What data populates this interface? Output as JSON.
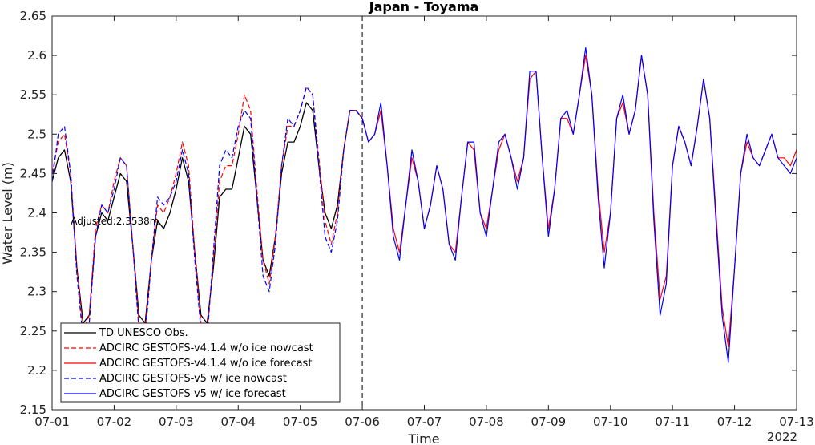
{
  "chart_data": {
    "type": "line",
    "title": "Japan - Toyama",
    "xlabel": "Time",
    "ylabel": "Water Level (m)",
    "year_label": "2022",
    "xlim": [
      0,
      12
    ],
    "ylim": [
      2.15,
      2.65
    ],
    "x_ticks": [
      0,
      1,
      2,
      3,
      4,
      5,
      6,
      7,
      8,
      9,
      10,
      11,
      12
    ],
    "x_tick_labels": [
      "07-01",
      "07-02",
      "07-03",
      "07-04",
      "07-05",
      "07-06",
      "07-07",
      "07-08",
      "07-09",
      "07-10",
      "07-11",
      "07-12",
      "07-13"
    ],
    "y_ticks": [
      2.15,
      2.2,
      2.25,
      2.3,
      2.35,
      2.4,
      2.45,
      2.5,
      2.55,
      2.6,
      2.65
    ],
    "y_tick_labels": [
      "2.15",
      "2.2",
      "2.25",
      "2.3",
      "2.35",
      "2.4",
      "2.45",
      "2.5",
      "2.55",
      "2.6",
      "2.65"
    ],
    "grid": false,
    "legend_position": "bottom-left",
    "nowcast_forecast_divider_x": 5,
    "annotation": {
      "text": "Adjusted:2.3538m",
      "x": 0.3,
      "y": 2.385
    },
    "series": [
      {
        "name": "TD UNESCO Obs.",
        "color": "#000000",
        "dash": "solid",
        "x": [
          0.0,
          0.1,
          0.2,
          0.3,
          0.4,
          0.5,
          0.6,
          0.7,
          0.8,
          0.9,
          1.0,
          1.1,
          1.2,
          1.3,
          1.4,
          1.5,
          1.6,
          1.7,
          1.8,
          1.9,
          2.0,
          2.1,
          2.2,
          2.3,
          2.4,
          2.5,
          2.6,
          2.7,
          2.8,
          2.9,
          3.0,
          3.1,
          3.2,
          3.3,
          3.4,
          3.5,
          3.6,
          3.7,
          3.8,
          3.9,
          4.0,
          4.1,
          4.2,
          4.3,
          4.4,
          4.5,
          4.6,
          4.7,
          4.8,
          4.9,
          5.0
        ],
        "y": [
          2.44,
          2.47,
          2.48,
          2.44,
          2.33,
          2.26,
          2.27,
          2.37,
          2.4,
          2.39,
          2.42,
          2.45,
          2.44,
          2.36,
          2.27,
          2.26,
          2.34,
          2.39,
          2.38,
          2.4,
          2.43,
          2.47,
          2.44,
          2.35,
          2.27,
          2.26,
          2.33,
          2.42,
          2.43,
          2.43,
          2.47,
          2.51,
          2.5,
          2.42,
          2.34,
          2.32,
          2.37,
          2.45,
          2.49,
          2.49,
          2.51,
          2.54,
          2.53,
          2.46,
          2.4,
          2.38,
          2.41,
          2.48,
          2.53,
          2.53,
          2.52
        ]
      },
      {
        "name": "ADCIRC GESTOFS-v4.1.4 w/o ice nowcast",
        "color": "#ff0000",
        "dash": "dashed",
        "x": [
          0.0,
          0.1,
          0.2,
          0.3,
          0.4,
          0.5,
          0.6,
          0.7,
          0.8,
          0.9,
          1.0,
          1.1,
          1.2,
          1.3,
          1.4,
          1.5,
          1.6,
          1.7,
          1.8,
          1.9,
          2.0,
          2.1,
          2.2,
          2.3,
          2.4,
          2.5,
          2.6,
          2.7,
          2.8,
          2.9,
          3.0,
          3.1,
          3.2,
          3.3,
          3.4,
          3.5,
          3.6,
          3.7,
          3.8,
          3.9,
          4.0,
          4.1,
          4.2,
          4.3,
          4.4,
          4.5,
          4.6,
          4.7,
          4.8,
          4.9,
          5.0
        ],
        "y": [
          2.45,
          2.49,
          2.5,
          2.45,
          2.33,
          2.25,
          2.27,
          2.38,
          2.41,
          2.4,
          2.44,
          2.47,
          2.46,
          2.36,
          2.26,
          2.25,
          2.34,
          2.41,
          2.4,
          2.42,
          2.45,
          2.49,
          2.46,
          2.35,
          2.26,
          2.25,
          2.34,
          2.44,
          2.46,
          2.46,
          2.5,
          2.55,
          2.53,
          2.43,
          2.34,
          2.31,
          2.37,
          2.46,
          2.51,
          2.51,
          2.53,
          2.56,
          2.55,
          2.47,
          2.39,
          2.36,
          2.4,
          2.48,
          2.53,
          2.53,
          2.52
        ]
      },
      {
        "name": "ADCIRC GESTOFS-v4.1.4 w/o ice forecast",
        "color": "#ff0000",
        "dash": "solid",
        "x": [
          5.0,
          5.1,
          5.2,
          5.3,
          5.4,
          5.5,
          5.6,
          5.7,
          5.8,
          5.9,
          6.0,
          6.1,
          6.2,
          6.3,
          6.4,
          6.5,
          6.6,
          6.7,
          6.8,
          6.9,
          7.0,
          7.1,
          7.2,
          7.3,
          7.4,
          7.5,
          7.6,
          7.7,
          7.8,
          7.9,
          8.0,
          8.1,
          8.2,
          8.3,
          8.4,
          8.5,
          8.6,
          8.7,
          8.8,
          8.9,
          9.0,
          9.1,
          9.2,
          9.3,
          9.4,
          9.5,
          9.6,
          9.7,
          9.8,
          9.9,
          10.0,
          10.1,
          10.2,
          10.3,
          10.4,
          10.5,
          10.6,
          10.7,
          10.8,
          10.9,
          11.0,
          11.1,
          11.2,
          11.3,
          11.4,
          11.5,
          11.6,
          11.7,
          11.8,
          11.9,
          12.0
        ],
        "y": [
          2.52,
          2.49,
          2.5,
          2.53,
          2.46,
          2.38,
          2.35,
          2.41,
          2.47,
          2.44,
          2.38,
          2.41,
          2.46,
          2.43,
          2.36,
          2.35,
          2.42,
          2.49,
          2.48,
          2.4,
          2.38,
          2.43,
          2.48,
          2.5,
          2.47,
          2.44,
          2.47,
          2.57,
          2.58,
          2.47,
          2.38,
          2.43,
          2.52,
          2.52,
          2.5,
          2.55,
          2.6,
          2.55,
          2.43,
          2.35,
          2.4,
          2.52,
          2.54,
          2.5,
          2.53,
          2.6,
          2.55,
          2.4,
          2.29,
          2.32,
          2.46,
          2.51,
          2.49,
          2.46,
          2.51,
          2.57,
          2.52,
          2.4,
          2.28,
          2.23,
          2.33,
          2.45,
          2.49,
          2.47,
          2.46,
          2.48,
          2.5,
          2.47,
          2.47,
          2.46,
          2.48
        ]
      },
      {
        "name": "ADCIRC GESTOFS-v5 w/ ice nowcast",
        "color": "#0000ff",
        "dash": "dashed",
        "x": [
          0.0,
          0.1,
          0.2,
          0.3,
          0.4,
          0.5,
          0.6,
          0.7,
          0.8,
          0.9,
          1.0,
          1.1,
          1.2,
          1.3,
          1.4,
          1.5,
          1.6,
          1.7,
          1.8,
          1.9,
          2.0,
          2.1,
          2.2,
          2.3,
          2.4,
          2.5,
          2.6,
          2.7,
          2.8,
          2.9,
          3.0,
          3.1,
          3.2,
          3.3,
          3.4,
          3.5,
          3.6,
          3.7,
          3.8,
          3.9,
          4.0,
          4.1,
          4.2,
          4.3,
          4.4,
          4.5,
          4.6,
          4.7,
          4.8,
          4.9,
          5.0
        ],
        "y": [
          2.44,
          2.5,
          2.51,
          2.45,
          2.32,
          2.24,
          2.26,
          2.37,
          2.41,
          2.4,
          2.43,
          2.47,
          2.46,
          2.36,
          2.25,
          2.24,
          2.34,
          2.42,
          2.41,
          2.42,
          2.44,
          2.48,
          2.45,
          2.34,
          2.25,
          2.24,
          2.35,
          2.46,
          2.48,
          2.47,
          2.51,
          2.53,
          2.52,
          2.42,
          2.32,
          2.3,
          2.36,
          2.46,
          2.52,
          2.51,
          2.53,
          2.56,
          2.55,
          2.46,
          2.37,
          2.35,
          2.39,
          2.48,
          2.53,
          2.53,
          2.52
        ]
      },
      {
        "name": "ADCIRC GESTOFS-v5 w/ ice forecast",
        "color": "#0000ff",
        "dash": "solid",
        "x": [
          5.0,
          5.1,
          5.2,
          5.3,
          5.4,
          5.5,
          5.6,
          5.7,
          5.8,
          5.9,
          6.0,
          6.1,
          6.2,
          6.3,
          6.4,
          6.5,
          6.6,
          6.7,
          6.8,
          6.9,
          7.0,
          7.1,
          7.2,
          7.3,
          7.4,
          7.5,
          7.6,
          7.7,
          7.8,
          7.9,
          8.0,
          8.1,
          8.2,
          8.3,
          8.4,
          8.5,
          8.6,
          8.7,
          8.8,
          8.9,
          9.0,
          9.1,
          9.2,
          9.3,
          9.4,
          9.5,
          9.6,
          9.7,
          9.8,
          9.9,
          10.0,
          10.1,
          10.2,
          10.3,
          10.4,
          10.5,
          10.6,
          10.7,
          10.8,
          10.9,
          11.0,
          11.1,
          11.2,
          11.3,
          11.4,
          11.5,
          11.6,
          11.7,
          11.8,
          11.9,
          12.0
        ],
        "y": [
          2.52,
          2.49,
          2.5,
          2.54,
          2.46,
          2.37,
          2.34,
          2.41,
          2.48,
          2.44,
          2.38,
          2.41,
          2.46,
          2.43,
          2.36,
          2.34,
          2.42,
          2.49,
          2.49,
          2.4,
          2.37,
          2.43,
          2.49,
          2.5,
          2.47,
          2.43,
          2.47,
          2.58,
          2.58,
          2.47,
          2.37,
          2.43,
          2.52,
          2.53,
          2.5,
          2.55,
          2.61,
          2.55,
          2.42,
          2.33,
          2.4,
          2.52,
          2.55,
          2.5,
          2.53,
          2.6,
          2.55,
          2.39,
          2.27,
          2.31,
          2.46,
          2.51,
          2.49,
          2.46,
          2.51,
          2.57,
          2.52,
          2.39,
          2.27,
          2.21,
          2.33,
          2.45,
          2.5,
          2.47,
          2.46,
          2.48,
          2.5,
          2.47,
          2.46,
          2.45,
          2.47
        ]
      }
    ]
  }
}
